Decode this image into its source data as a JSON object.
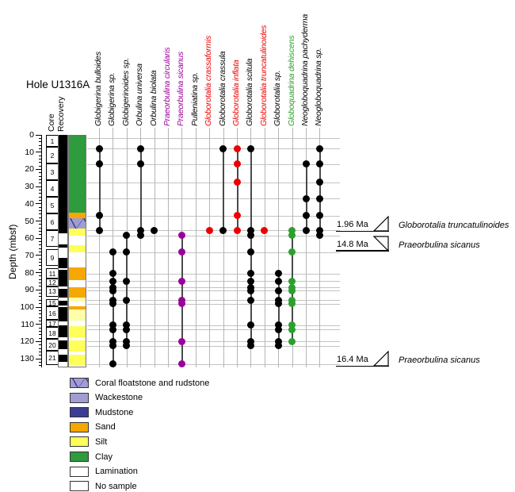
{
  "chart_data": {
    "type": "scatter",
    "title": "Hole U1316A",
    "ylabel": "Depth (mbsf)",
    "ylim": [
      0,
      135
    ],
    "y_major_tick": 10,
    "y_minor_tick": 2,
    "column_headers": {
      "core": "Core",
      "recovery": "Recovery"
    },
    "grid": "sample-lines-and-species-lines",
    "legend_position": "bottom-left",
    "sample_depths": [
      2,
      8,
      17,
      27.5,
      37,
      47,
      55.5,
      58.5,
      68,
      80.5,
      85,
      88.5,
      90.5,
      96,
      98,
      110.5,
      113,
      120,
      122.5,
      133
    ],
    "species": [
      {
        "name": "Globigerina bulloides",
        "color": "#000000",
        "occurrences": [
          8,
          17,
          47,
          55.5
        ]
      },
      {
        "name": "Globigerina sp.",
        "color": "#000000",
        "occurrences": [
          68,
          80.5,
          85,
          88.5,
          90.5,
          96,
          98,
          110.5,
          113,
          120,
          122.5,
          133
        ]
      },
      {
        "name": "Globigerinoides sp.",
        "color": "#000000",
        "occurrences": [
          58.5,
          68,
          85,
          96,
          110.5,
          113,
          120,
          122.5
        ]
      },
      {
        "name": "Orbulina universa",
        "color": "#000000",
        "occurrences": [
          8,
          17,
          55.5,
          58.5
        ]
      },
      {
        "name": "Orbulina biolata",
        "color": "#000000",
        "occurrences": [
          55.5
        ]
      },
      {
        "name": "Praeorbulina circularis",
        "color": "#9b009b",
        "occurrences": []
      },
      {
        "name": "Praeorbulina sicanus",
        "color": "#9b009b",
        "occurrences": [
          58.5,
          68,
          85,
          96,
          98,
          120,
          133
        ]
      },
      {
        "name": "Pulleniatina sp.",
        "color": "#000000",
        "occurrences": []
      },
      {
        "name": "Globorotalia crassaformis",
        "color": "#ee0000",
        "occurrences": [
          55.5
        ]
      },
      {
        "name": "Globorotalia crassula",
        "color": "#000000",
        "occurrences": [
          8,
          55.5
        ]
      },
      {
        "name": "Globorotalia inflata",
        "color": "#ee0000",
        "occurrences": [
          8,
          17,
          27.5,
          47,
          55.5
        ]
      },
      {
        "name": "Globorotalia scitula",
        "color": "#000000",
        "occurrences": [
          8,
          55.5,
          58.5,
          68,
          80.5,
          85,
          88.5,
          90.5,
          96,
          110.5,
          120,
          122.5
        ]
      },
      {
        "name": "Globorotalia truncatulinoides",
        "color": "#ee0000",
        "occurrences": [
          55.5
        ]
      },
      {
        "name": "Globorotalia sp.",
        "color": "#000000",
        "occurrences": [
          80.5,
          85,
          90.5,
          96,
          98,
          110.5,
          113,
          120,
          122.5
        ]
      },
      {
        "name": "Globoquadrina dehiscens",
        "color": "#2ca02c",
        "occurrences": [
          55.5,
          58.5,
          68,
          85,
          88.5,
          90.5,
          96,
          98,
          110.5,
          113,
          120
        ]
      },
      {
        "name": "Neogloboquadrina pachyderma",
        "color": "#000000",
        "occurrences": [
          17,
          37,
          47,
          55.5
        ]
      },
      {
        "name": "Neogloboquadrina sp.",
        "color": "#000000",
        "occurrences": [
          8,
          17,
          27.5,
          37,
          47,
          55.5,
          58.5
        ]
      }
    ],
    "cores": [
      {
        "label": "1",
        "top": 0,
        "bottom": 7
      },
      {
        "label": "2",
        "top": 7,
        "bottom": 16.7
      },
      {
        "label": "3",
        "top": 16.7,
        "bottom": 26.4
      },
      {
        "label": "4",
        "top": 26.4,
        "bottom": 36.1
      },
      {
        "label": "5",
        "top": 36.1,
        "bottom": 45.8
      },
      {
        "label": "6",
        "top": 45.8,
        "bottom": 55.5
      },
      {
        "label": "7",
        "top": 55.5,
        "bottom": 65.2
      },
      {
        "label": "9",
        "top": 66.5,
        "bottom": 76.2
      },
      {
        "label": "11",
        "top": 77.5,
        "bottom": 83.5
      },
      {
        "label": "12",
        "top": 83.5,
        "bottom": 88
      },
      {
        "label": "13",
        "top": 88,
        "bottom": 94
      },
      {
        "label": "15",
        "top": 95.5,
        "bottom": 99.5
      },
      {
        "label": "16",
        "top": 99.5,
        "bottom": 107.5
      },
      {
        "label": "17",
        "top": 107.5,
        "bottom": 111.5
      },
      {
        "label": "18",
        "top": 111.5,
        "bottom": 118.5
      },
      {
        "label": "20",
        "top": 118.5,
        "bottom": 125.5
      },
      {
        "label": "21",
        "top": 125.5,
        "bottom": 133.5
      }
    ],
    "recovery_black_segments": [
      [
        0,
        57
      ],
      [
        63.5,
        65.5
      ],
      [
        71.5,
        77.5
      ],
      [
        78.5,
        88
      ],
      [
        89.5,
        94.5
      ],
      [
        96.5,
        99
      ],
      [
        100,
        108.5
      ],
      [
        110.5,
        117.5
      ],
      [
        119.5,
        124.5
      ],
      [
        127.5,
        132
      ]
    ],
    "lithology_bands": [
      {
        "top": 0,
        "bottom": 24.5,
        "kind": "clay"
      },
      {
        "top": 24.5,
        "bottom": 45,
        "kind": "clay_lam"
      },
      {
        "top": 45,
        "bottom": 48.5,
        "kind": "sand"
      },
      {
        "top": 48.5,
        "bottom": 54.5,
        "kind": "coral"
      },
      {
        "top": 54.5,
        "bottom": 58.5,
        "kind": "silt"
      },
      {
        "top": 64,
        "bottom": 68,
        "kind": "silt"
      },
      {
        "top": 77,
        "bottom": 78.3,
        "kind": "clay",
        "inset_right": 8
      },
      {
        "top": 77,
        "bottom": 84.5,
        "kind": "sand"
      },
      {
        "top": 88.5,
        "bottom": 94.5,
        "kind": "sand"
      },
      {
        "top": 94.5,
        "bottom": 97,
        "kind": "silt_pale"
      },
      {
        "top": 99.5,
        "bottom": 101.5,
        "kind": "sand"
      },
      {
        "top": 101.5,
        "bottom": 108,
        "kind": "silt_pale"
      },
      {
        "top": 111,
        "bottom": 117.5,
        "kind": "silt"
      },
      {
        "top": 119.5,
        "bottom": 126,
        "kind": "silt"
      },
      {
        "top": 127.5,
        "bottom": 133.5,
        "kind": "silt"
      }
    ],
    "lithology_colors": {
      "clay": "#2e9b3d",
      "sand": "#f6a800",
      "silt": "#ffff59",
      "silt_pale": "#ffffa8",
      "wackestone": "#a19dd2",
      "mudstone": "#3c3c96"
    },
    "datums": [
      {
        "age": "1.96 Ma",
        "species": "Globorotalia truncatulinoides",
        "depth": 56,
        "event": "FO"
      },
      {
        "age": "14.8 Ma",
        "species": "Praeorbulina sicanus",
        "depth": 67.5,
        "event": "LO"
      },
      {
        "age": "16.4 Ma",
        "species": "Praeorbulina sicanus",
        "depth": 134.5,
        "event": "FO"
      }
    ],
    "legend": [
      {
        "label": "Coral floatstone and rudstone",
        "kind": "coral"
      },
      {
        "label": "Wackestone",
        "kind": "wackestone"
      },
      {
        "label": "Mudstone",
        "kind": "mudstone"
      },
      {
        "label": "Sand",
        "kind": "sand"
      },
      {
        "label": "Silt",
        "kind": "silt"
      },
      {
        "label": "Clay",
        "kind": "clay"
      },
      {
        "label": "Lamination",
        "kind": "lamination"
      },
      {
        "label": "No sample",
        "kind": "none"
      }
    ]
  }
}
